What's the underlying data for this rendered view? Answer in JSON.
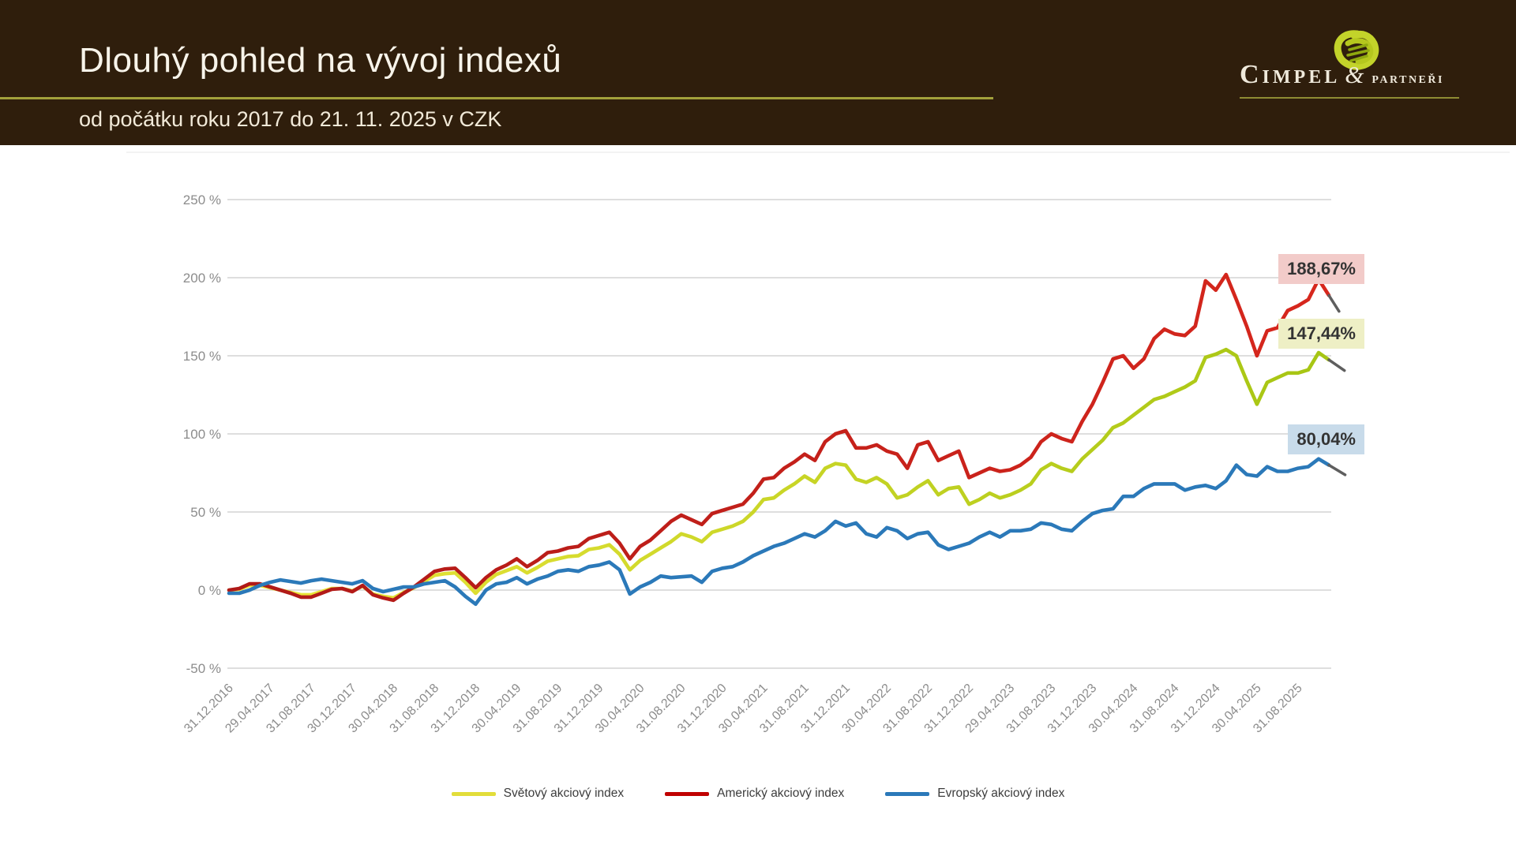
{
  "header": {
    "title": "Dlouhý pohled na vývoj indexů",
    "subtitle": "od počátku roku 2017 do 21. 11. 2025 v CZK",
    "logo": {
      "name": "Cimpel",
      "amp": "&",
      "suffix": "partneři"
    }
  },
  "colors": {
    "page_bg": "#FFFFFF",
    "header_bg": "#2F1E0C",
    "gold": "#A3A13B",
    "gold_dark": "#8E8B33",
    "title_color": "#F8F4EA",
    "subtitle_color": "#F2EAD9",
    "logo_color": "#EFE9DB",
    "logo_blob": "#C3D32A",
    "grid": "#C9C9C9",
    "tick_text": "#8C8C8C",
    "leader": "#5E5E5E"
  },
  "chart_data": {
    "type": "line",
    "title": "Dlouhý pohled na vývoj indexů",
    "subtitle": "od počátku roku 2017 do 21. 11. 2025 v CZK",
    "x_start": "31.12.2016",
    "x_end": "21.11.2025",
    "x_unit": "monthly",
    "ylim": [
      -50,
      250
    ],
    "grid": true,
    "legend_position": "bottom",
    "y_gridlines": [
      {
        "label": "250 %",
        "value": 250
      },
      {
        "label": "200 %",
        "value": 200
      },
      {
        "label": "150 %",
        "value": 150
      },
      {
        "label": "100 %",
        "value": 100
      },
      {
        "label": "50 %",
        "value": 50
      },
      {
        "label": "0 %",
        "value": 0
      },
      {
        "label": "-50 %",
        "value": -50
      }
    ],
    "x_tick_labels": [
      "31.12.2016",
      "29.04.2017",
      "31.08.2017",
      "30.12.2017",
      "30.04.2018",
      "31.08.2018",
      "31.12.2018",
      "30.04.2019",
      "31.08.2019",
      "31.12.2019",
      "30.04.2020",
      "31.08.2020",
      "31.12.2020",
      "30.04.2021",
      "31.08.2021",
      "31.12.2021",
      "30.04.2022",
      "31.08.2022",
      "31.12.2022",
      "29.04.2023",
      "31.08.2023",
      "31.12.2023",
      "30.04.2024",
      "31.08.2024",
      "31.12.2024",
      "30.04.2025",
      "31.08.2025"
    ],
    "x_ticks_every_n_points": 4,
    "series": [
      {
        "name": "Světový akciový index",
        "legend_color": "#E2DD3A",
        "color_start": "#EDE63B",
        "color_end": "#A6C513",
        "end_label": "147,44%",
        "end_value": 147.44,
        "end_label_bg": "#EEEFC5",
        "values": [
          0,
          0.5,
          3,
          3,
          1.5,
          0,
          -1.5,
          -3,
          -3,
          -1,
          1,
          1,
          -0.5,
          2.5,
          -2.5,
          -4,
          -5,
          -1.5,
          1.5,
          5.5,
          9.5,
          10.5,
          11,
          5,
          -2,
          5,
          10,
          12.5,
          15,
          11,
          14.5,
          18.5,
          20,
          21.5,
          22,
          26,
          27,
          29,
          23,
          13,
          19,
          23,
          27,
          31,
          36,
          34,
          31,
          37,
          39,
          41,
          44,
          50,
          58,
          59,
          64,
          68,
          73,
          69,
          78,
          81,
          80,
          71,
          69,
          72,
          68,
          59,
          61,
          66,
          70,
          61,
          65,
          66,
          55,
          58,
          62,
          59,
          61,
          64,
          68,
          77,
          81,
          78,
          76,
          84,
          90,
          96,
          104,
          107,
          112,
          117,
          122,
          124,
          127,
          130,
          134,
          149,
          151,
          154,
          150,
          134,
          119,
          133,
          136,
          139,
          139,
          141,
          152,
          147.44
        ]
      },
      {
        "name": "Americký akciový index",
        "legend_color": "#C00000",
        "color_start": "#AF1917",
        "color_end": "#D7271D",
        "end_label": "188,67%",
        "end_value": 188.67,
        "end_label_bg": "#F2CBC9",
        "values": [
          0,
          1,
          4,
          4,
          2,
          0,
          -2,
          -4.5,
          -4.5,
          -2,
          0.5,
          1,
          -1,
          3,
          -3,
          -5,
          -6.5,
          -2,
          2,
          7,
          12,
          13.5,
          14,
          8,
          1.5,
          8,
          13,
          16,
          20,
          15,
          19,
          24,
          25,
          27,
          28,
          33,
          35,
          37,
          30,
          20,
          28,
          32,
          38,
          44,
          48,
          45,
          42,
          49,
          51,
          53,
          55,
          62,
          71,
          72,
          78,
          82,
          87,
          83,
          95,
          100,
          102,
          91,
          91,
          93,
          89,
          87,
          78,
          93,
          95,
          83,
          86,
          89,
          72,
          75,
          78,
          76,
          77,
          80,
          85,
          95,
          100,
          97,
          95,
          108,
          119,
          133,
          148,
          150,
          142,
          148,
          161,
          167,
          164,
          163,
          169,
          198,
          192,
          202,
          186,
          169,
          150,
          166,
          168,
          179,
          182,
          186,
          199,
          188.67
        ]
      },
      {
        "name": "Evropský akciový index",
        "legend_color": "#2B79B9",
        "color_start": "#2B79B9",
        "color_end": "#2B79B9",
        "end_label": "80,04%",
        "end_value": 80.04,
        "end_label_bg": "#C8DBEA",
        "values": [
          -2,
          -2,
          0,
          3,
          5,
          6.5,
          5.5,
          4.5,
          6,
          7,
          6,
          5,
          4,
          6,
          1,
          -1,
          0.5,
          2,
          2,
          4,
          5,
          6,
          2,
          -4,
          -9,
          0,
          4,
          5,
          8,
          4,
          7,
          9,
          12,
          13,
          12,
          15,
          16,
          18,
          13,
          -2.5,
          2,
          5,
          9,
          8,
          8.5,
          9,
          5,
          12,
          14,
          15,
          18,
          22,
          25,
          28,
          30,
          33,
          36,
          34,
          38,
          44,
          41,
          43,
          36,
          34,
          40,
          38,
          33,
          36,
          37,
          29,
          26,
          28,
          30,
          34,
          37,
          34,
          38,
          38,
          39,
          43,
          42,
          39,
          38,
          44,
          49,
          51,
          52,
          60,
          60,
          65,
          68,
          68,
          68,
          64,
          66,
          67,
          65,
          70,
          80,
          74,
          73,
          79,
          76,
          76,
          78,
          79,
          84,
          80.04
        ]
      }
    ]
  }
}
